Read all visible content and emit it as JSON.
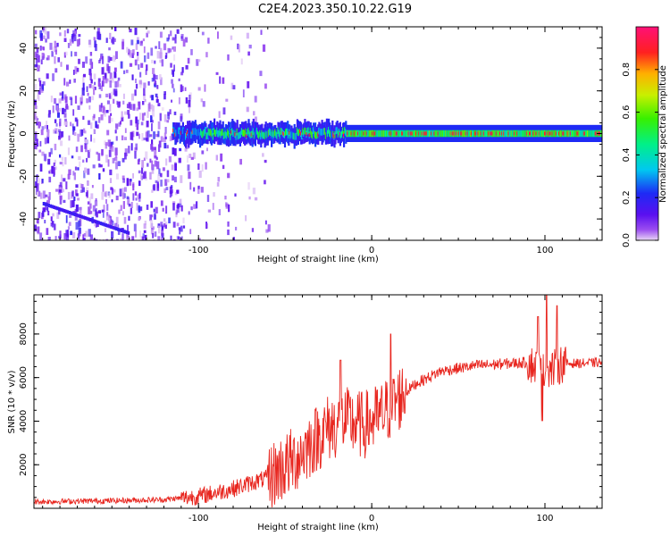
{
  "title": "C2E4.2023.350.10.22.G19",
  "chart_data": [
    {
      "type": "heatmap",
      "xlabel": "Height of straight line (km)",
      "ylabel": "Frequency (Hz)",
      "xlim": [
        -195,
        133
      ],
      "ylim": [
        -50,
        50
      ],
      "x_ticks": [
        -100,
        0,
        100
      ],
      "x_tick_labels": [
        "-100",
        "0",
        "100"
      ],
      "y_ticks": [
        -40,
        -20,
        0,
        20,
        40
      ],
      "y_tick_labels": [
        "-40",
        "-20",
        "0",
        "20",
        "40"
      ],
      "colorbar": {
        "label": "Normalized spectral amplitude",
        "range": [
          0,
          1
        ],
        "ticks": [
          0.0,
          0.2,
          0.4,
          0.6,
          0.8
        ],
        "tick_labels": [
          "0.0",
          "0.2",
          "0.4",
          "0.6",
          "0.8"
        ],
        "colormap": "hsv (purple-blue-cyan-green-yellow-orange-red-pink)"
      },
      "features": {
        "noise_region_x": [
          -195,
          -60
        ],
        "signal_band_center_hz": 0,
        "signal_band_halfwidth_hz": 4,
        "signal_onset_x": -115,
        "strong_signal_x": [
          -15,
          120
        ]
      }
    },
    {
      "type": "line",
      "xlabel": "Height of straight line (km)",
      "ylabel": "SNR (10 * v/v)",
      "xlim": [
        -195,
        133
      ],
      "ylim": [
        0,
        9800
      ],
      "x_ticks": [
        -100,
        0,
        100
      ],
      "x_tick_labels": [
        "-100",
        "0",
        "100"
      ],
      "y_ticks": [
        2000,
        4000,
        6000,
        8000
      ],
      "y_tick_labels": [
        "2000",
        "4000",
        "6000",
        "8000"
      ],
      "series": [
        {
          "color": "#e8261f",
          "x": [
            -195,
            -150,
            -120,
            -100,
            -80,
            -60,
            -45,
            -35,
            -25,
            -15,
            -5,
            5,
            15,
            25,
            40,
            60,
            80,
            90,
            95,
            100,
            105,
            110,
            120,
            133
          ],
          "y": [
            300,
            350,
            400,
            550,
            900,
            1400,
            2200,
            3000,
            3700,
            4000,
            3800,
            4200,
            5000,
            5700,
            6300,
            6550,
            6650,
            6700,
            6500,
            6200,
            6400,
            6650,
            6650,
            6700
          ],
          "spikes": [
            {
              "x": -18,
              "y": 6800
            },
            {
              "x": 11,
              "y": 8000
            },
            {
              "x": 96,
              "y": 8800
            },
            {
              "x": 101,
              "y": 9800
            },
            {
              "x": 107,
              "y": 9300
            }
          ]
        }
      ]
    }
  ]
}
